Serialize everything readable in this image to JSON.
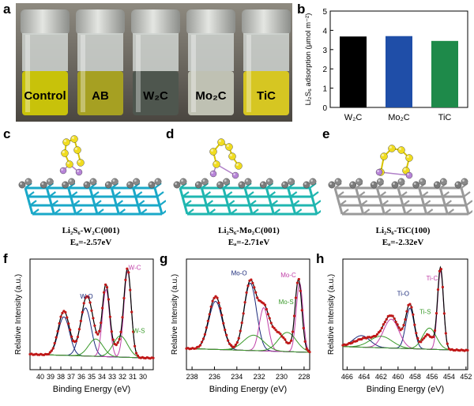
{
  "panel_labels": {
    "a": "a",
    "b": "b",
    "c": "c",
    "d": "d",
    "e": "e",
    "f": "f",
    "g": "g",
    "h": "h"
  },
  "vials": [
    {
      "label": "Control",
      "liquid": "#c8c20a"
    },
    {
      "label": "AB",
      "liquid": "#a6a022"
    },
    {
      "label": "W₂C",
      "liquid": "#4e564e"
    },
    {
      "label": "Mo₂C",
      "liquid": "#bfc1b3"
    },
    {
      "label": "TiC",
      "liquid": "#d6c622"
    }
  ],
  "structures": [
    {
      "line1": "Li₂S₆-W₂C(001)",
      "line2": "Eₐ=-2.57eV",
      "substrate": "#1aa8c8"
    },
    {
      "line1": "Li₂S₆-Mo₂C(001)",
      "line2": "Eₐ=-2.71eV",
      "substrate": "#1fb6b0"
    },
    {
      "line1": "Li₂S₆-TiC(100)",
      "line2": "Eₐ=-2.32eV",
      "substrate": "#9a9a9a"
    }
  ],
  "chart_data": [
    {
      "type": "bar",
      "categories": [
        "W₂C",
        "Mo₂C",
        "TiC"
      ],
      "values": [
        3.68,
        3.7,
        3.45
      ],
      "colors": [
        "#000000",
        "#1f4ea8",
        "#1e8a4a"
      ],
      "ylabel": "Li₂S₆ adsorption (μmol m⁻²)",
      "ylim": [
        0,
        5
      ],
      "yticks": [
        "0",
        "1",
        "2",
        "3",
        "4",
        "5"
      ]
    },
    {
      "type": "line",
      "xlabel": "Binding Energy (eV)",
      "ylabel": "Relative Intensity (a.u.)",
      "xlim": [
        41,
        29
      ],
      "xticks": [
        "40",
        "39",
        "38",
        "37",
        "36",
        "35",
        "34",
        "33",
        "32",
        "31",
        "30"
      ],
      "xtick_values": [
        40,
        39,
        38,
        37,
        36,
        35,
        34,
        33,
        32,
        31,
        30
      ],
      "baseline": 0.12,
      "envelope_peaks": [
        [
          37.7,
          0.46,
          0.55
        ],
        [
          35.5,
          0.55,
          0.55
        ],
        [
          33.6,
          0.72,
          0.35
        ],
        [
          31.5,
          0.9,
          0.35
        ],
        [
          34.8,
          0.12,
          0.7
        ],
        [
          32.4,
          0.12,
          0.5
        ]
      ],
      "components": [
        {
          "name": "W-O",
          "color": "#1a2a7a",
          "peaks": [
            [
              35.6,
              0.5,
              0.55
            ],
            [
              37.7,
              0.4,
              0.55
            ]
          ]
        },
        {
          "name": "W-C",
          "color": "#c040a8",
          "peaks": [
            [
              31.5,
              0.9,
              0.35
            ],
            [
              33.6,
              0.7,
              0.35
            ]
          ]
        },
        {
          "name": "W-S",
          "color": "#3a9a2a",
          "peaks": [
            [
              32.2,
              0.22,
              0.7
            ],
            [
              34.6,
              0.18,
              0.7
            ]
          ]
        }
      ],
      "annotations": [
        {
          "text": "W-O",
          "x": 35.5,
          "y": 0.74,
          "color": "#1a2a7a"
        },
        {
          "text": "W-C",
          "x": 30.8,
          "y": 1.04,
          "color": "#c040a8"
        },
        {
          "text": "W-S",
          "x": 30.4,
          "y": 0.38,
          "color": "#3a9a2a"
        }
      ]
    },
    {
      "type": "line",
      "xlabel": "Binding Energy (eV)",
      "ylabel": "Relative Intensity (a.u.)",
      "xlim": [
        238.5,
        227.5
      ],
      "xticks": [
        "238",
        "236",
        "234",
        "232",
        "230",
        "228"
      ],
      "xtick_values": [
        238,
        236,
        234,
        232,
        230,
        228
      ],
      "baseline": 0.18,
      "envelope_peaks": [
        [
          235.9,
          0.55,
          0.6
        ],
        [
          232.8,
          0.72,
          0.55
        ],
        [
          231.6,
          0.35,
          0.45
        ],
        [
          228.5,
          0.75,
          0.3
        ],
        [
          230.5,
          0.2,
          0.8
        ]
      ],
      "components": [
        {
          "name": "Mo-O",
          "color": "#1a2a7a",
          "peaks": [
            [
              232.8,
              0.7,
              0.55
            ],
            [
              235.9,
              0.5,
              0.6
            ]
          ]
        },
        {
          "name": "Mo-C",
          "color": "#c040a8",
          "peaks": [
            [
              228.4,
              0.72,
              0.3
            ],
            [
              231.6,
              0.45,
              0.4
            ]
          ]
        },
        {
          "name": "Mo-S",
          "color": "#3a9a2a",
          "peaks": [
            [
              229.5,
              0.2,
              0.8
            ],
            [
              232.5,
              0.16,
              0.9
            ]
          ]
        }
      ],
      "annotations": [
        {
          "text": "Mo-O",
          "x": 233.8,
          "y": 0.98,
          "color": "#1a2a7a"
        },
        {
          "text": "Mo-C",
          "x": 229.4,
          "y": 0.96,
          "color": "#c040a8"
        },
        {
          "text": "Mo-S",
          "x": 229.6,
          "y": 0.68,
          "color": "#3a9a2a"
        }
      ]
    },
    {
      "type": "line",
      "xlabel": "Binding Energy (eV)",
      "ylabel": "Relative Intensity (a.u.)",
      "xlim": [
        466.5,
        451.8
      ],
      "xticks": [
        "466",
        "464",
        "462",
        "460",
        "458",
        "456",
        "454",
        "452"
      ],
      "xtick_values": [
        466,
        464,
        462,
        460,
        458,
        456,
        454,
        452
      ],
      "baseline": 0.2,
      "envelope_peaks": [
        [
          460.8,
          0.32,
          0.9
        ],
        [
          458.6,
          0.45,
          0.5
        ],
        [
          456.5,
          0.15,
          0.6
        ],
        [
          455.0,
          0.85,
          0.35
        ],
        [
          463.5,
          0.1,
          1.5
        ]
      ],
      "components": [
        {
          "name": "Ti-O",
          "color": "#1a2a7a",
          "peaks": [
            [
              458.6,
              0.42,
              0.5
            ],
            [
              464.3,
              0.12,
              1.0
            ]
          ]
        },
        {
          "name": "Ti-C",
          "color": "#c040a8",
          "peaks": [
            [
              455.0,
              0.82,
              0.35
            ],
            [
              460.8,
              0.3,
              0.9
            ]
          ]
        },
        {
          "name": "Ti-S",
          "color": "#3a9a2a",
          "peaks": [
            [
              456.3,
              0.22,
              0.8
            ],
            [
              462.0,
              0.12,
              1.3
            ]
          ]
        }
      ],
      "annotations": [
        {
          "text": "Ti-O",
          "x": 459.4,
          "y": 0.77,
          "color": "#1a2a7a"
        },
        {
          "text": "Ti-C",
          "x": 456.0,
          "y": 0.93,
          "color": "#c040a8"
        },
        {
          "text": "Ti-S",
          "x": 456.8,
          "y": 0.58,
          "color": "#3a9a2a"
        }
      ]
    }
  ]
}
